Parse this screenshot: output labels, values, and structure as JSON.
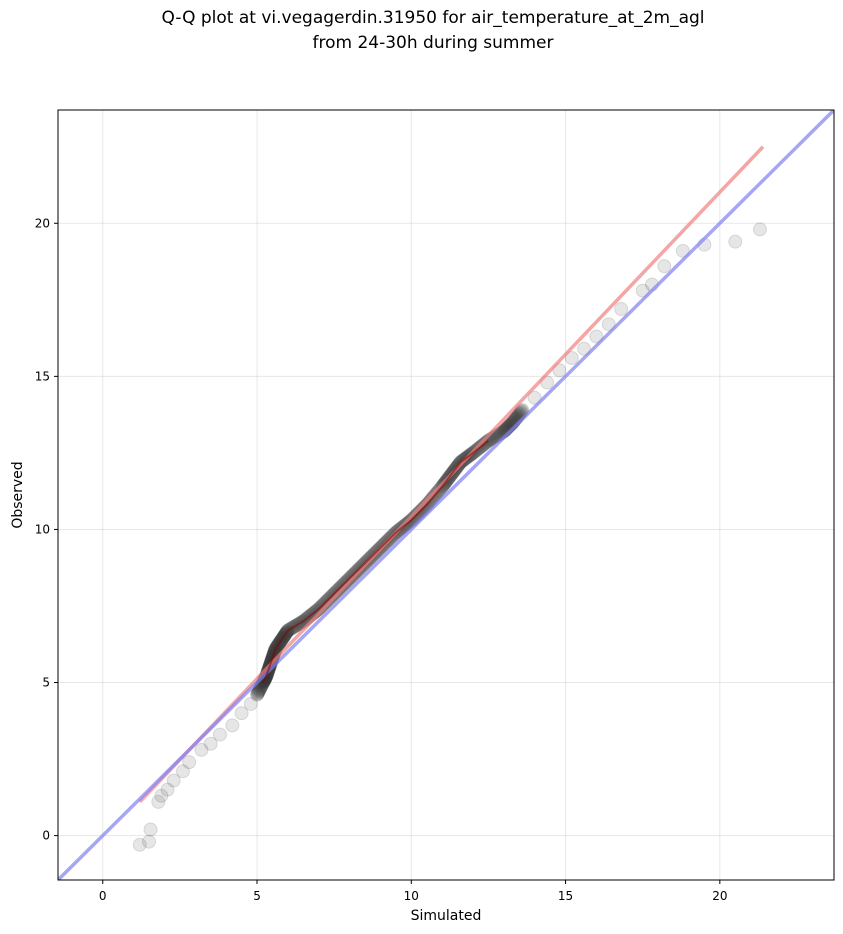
{
  "chart_data": {
    "type": "scatter",
    "title": "Q-Q plot at vi.vegagerdin.31950 for air_temperature_at_2m_agl",
    "subtitle": "from 24-30h during summer",
    "xlabel": "Simulated",
    "ylabel": "Observed",
    "xlim": [
      -1.45,
      23.7
    ],
    "ylim": [
      -1.45,
      23.7
    ],
    "xticks": [
      0,
      5,
      10,
      15,
      20
    ],
    "yticks": [
      0,
      5,
      10,
      15,
      20
    ],
    "grid": true,
    "colors": {
      "points": "#333333",
      "fit_line": "#f08080",
      "identity_line": "#8080f0",
      "center_line": "#8b0000"
    },
    "identity_line": {
      "slope": 1,
      "intercept": 0
    },
    "fit_line": {
      "x": [
        1.2,
        21.4
      ],
      "y": [
        1.1,
        22.5
      ]
    },
    "quantiles": {
      "simulated": [
        1.2,
        1.5,
        1.55,
        1.8,
        1.9,
        2.1,
        2.3,
        2.6,
        2.8,
        3.2,
        3.5,
        3.8,
        4.2,
        4.5,
        4.8,
        5.0,
        5.2,
        5.3,
        5.4,
        5.5,
        5.6,
        5.8,
        6.0,
        6.5,
        7.0,
        7.5,
        8.0,
        8.5,
        9.0,
        9.5,
        10.0,
        10.5,
        11.0,
        11.3,
        11.6,
        12.0,
        12.5,
        13.0,
        13.3,
        13.6,
        14.0,
        14.4,
        14.8,
        15.2,
        15.6,
        16.0,
        16.4,
        16.8,
        17.5,
        17.8,
        18.2,
        18.8,
        19.5,
        20.5,
        21.3
      ],
      "observed": [
        -0.3,
        -0.2,
        0.2,
        1.1,
        1.3,
        1.5,
        1.8,
        2.1,
        2.4,
        2.8,
        3.0,
        3.3,
        3.6,
        4.0,
        4.3,
        4.6,
        5.0,
        5.2,
        5.5,
        5.8,
        6.1,
        6.4,
        6.7,
        7.0,
        7.4,
        7.9,
        8.4,
        8.9,
        9.4,
        9.9,
        10.3,
        10.8,
        11.4,
        11.8,
        12.2,
        12.5,
        12.9,
        13.2,
        13.5,
        13.9,
        14.3,
        14.8,
        15.2,
        15.6,
        15.9,
        16.3,
        16.7,
        17.2,
        17.8,
        18.0,
        18.6,
        19.1,
        19.3,
        19.4,
        19.8
      ]
    }
  }
}
